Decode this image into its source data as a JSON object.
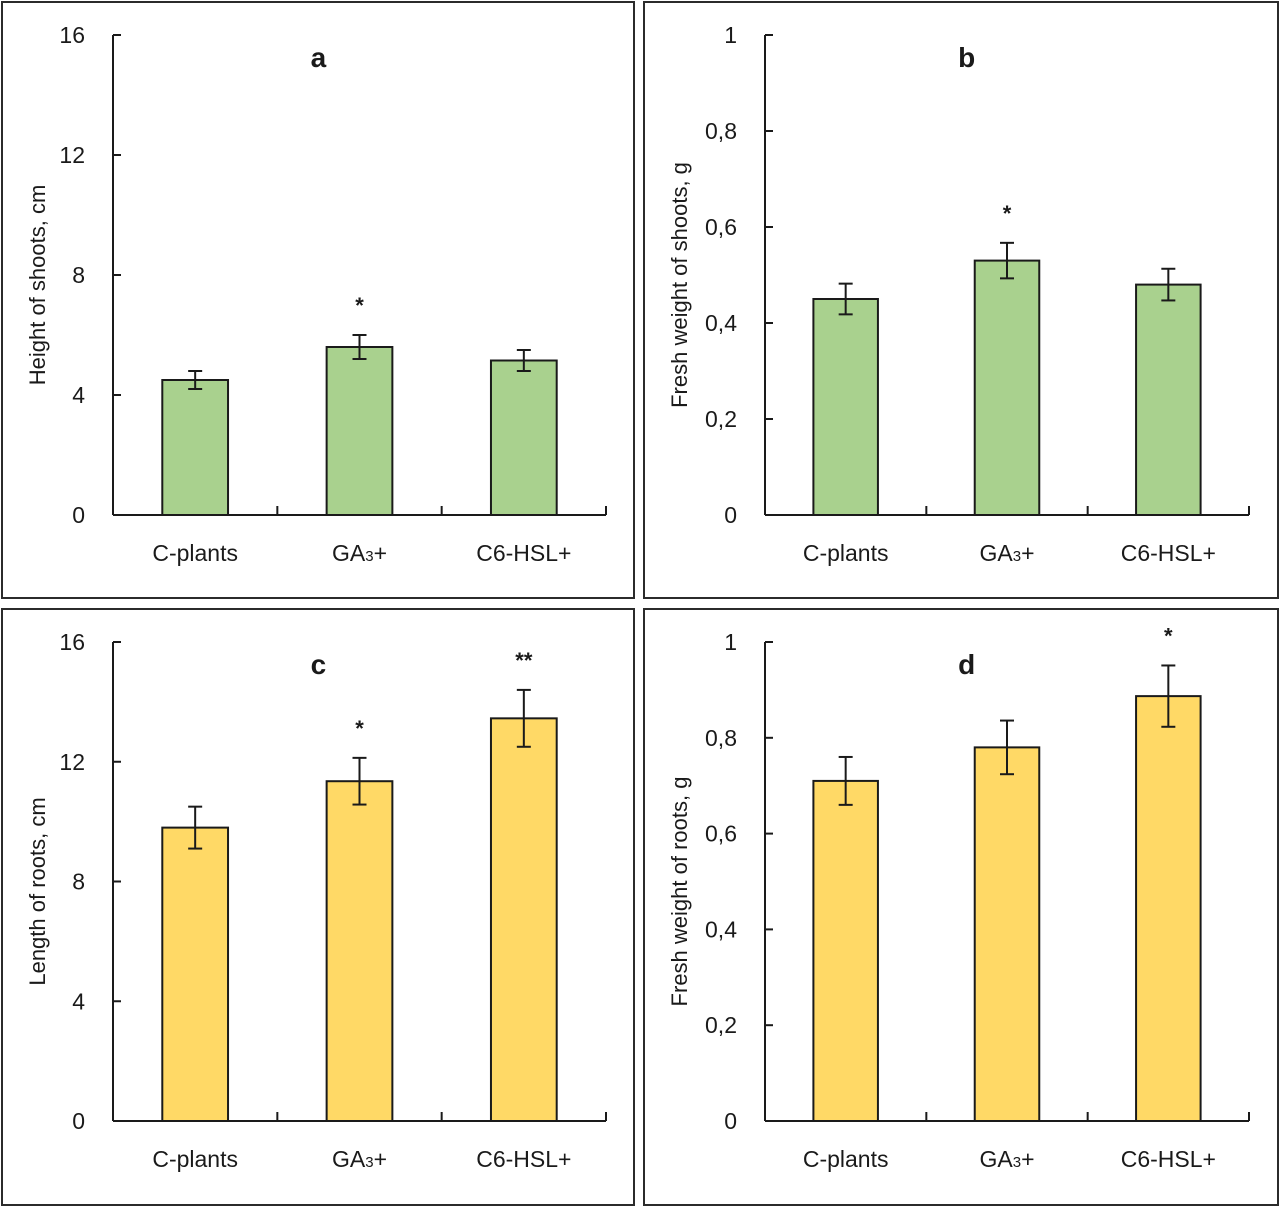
{
  "figure": {
    "colors": {
      "green": "#A9D18E",
      "yellow": "#FFD966",
      "stroke": "#1a1a1a"
    }
  },
  "chart_data": [
    {
      "panel": "a",
      "type": "bar",
      "title": "a",
      "categories": [
        "C-plants",
        "GA3+",
        "C6-HSL+"
      ],
      "category_display": [
        {
          "main": "C-plants",
          "sub": ""
        },
        {
          "main": "GA",
          "sub": "3",
          "tail": "+"
        },
        {
          "main": "C6-HSL+",
          "sub": ""
        }
      ],
      "values": [
        4.5,
        5.6,
        5.15
      ],
      "errors": [
        0.3,
        0.4,
        0.35
      ],
      "significance": [
        "",
        "*",
        ""
      ],
      "xlabel": "",
      "ylabel": "Height of shoots, cm",
      "ylim": [
        0,
        16
      ],
      "yticks": [
        0,
        4,
        8,
        12,
        16
      ],
      "ytick_labels": [
        "0",
        "4",
        "8",
        "12",
        "16"
      ],
      "color": "#A9D18E",
      "grid": false,
      "legend": "none"
    },
    {
      "panel": "b",
      "type": "bar",
      "title": "b",
      "categories": [
        "C-plants",
        "GA3+",
        "C6-HSL+"
      ],
      "category_display": [
        {
          "main": "C-plants",
          "sub": ""
        },
        {
          "main": "GA",
          "sub": "3",
          "tail": "+"
        },
        {
          "main": "C6-HSL+",
          "sub": ""
        }
      ],
      "values": [
        0.45,
        0.53,
        0.48
      ],
      "errors": [
        0.032,
        0.037,
        0.033
      ],
      "significance": [
        "",
        "*",
        ""
      ],
      "xlabel": "",
      "ylabel": "Fresh weight of shoots, g",
      "ylim": [
        0,
        1
      ],
      "yticks": [
        0,
        0.2,
        0.4,
        0.6,
        0.8,
        1
      ],
      "ytick_labels": [
        "0",
        "0,2",
        "0,4",
        "0,6",
        "0,8",
        "1"
      ],
      "color": "#A9D18E",
      "grid": false,
      "legend": "none"
    },
    {
      "panel": "c",
      "type": "bar",
      "title": "c",
      "categories": [
        "C-plants",
        "GA3+",
        "C6-HSL+"
      ],
      "category_display": [
        {
          "main": "C-plants",
          "sub": ""
        },
        {
          "main": "GA",
          "sub": "3",
          "tail": "+"
        },
        {
          "main": "C6-HSL+",
          "sub": ""
        }
      ],
      "values": [
        9.8,
        11.35,
        13.45
      ],
      "errors": [
        0.7,
        0.78,
        0.95
      ],
      "significance": [
        "",
        "*",
        "**"
      ],
      "xlabel": "",
      "ylabel": "Length of roots, cm",
      "ylim": [
        0,
        16
      ],
      "yticks": [
        0,
        4,
        8,
        12,
        16
      ],
      "ytick_labels": [
        "0",
        "4",
        "8",
        "12",
        "16"
      ],
      "color": "#FFD966",
      "grid": false,
      "legend": "none"
    },
    {
      "panel": "d",
      "type": "bar",
      "title": "d",
      "categories": [
        "C-plants",
        "GA3+",
        "C6-HSL+"
      ],
      "category_display": [
        {
          "main": "C-plants",
          "sub": ""
        },
        {
          "main": "GA",
          "sub": "3",
          "tail": "+"
        },
        {
          "main": "C6-HSL+",
          "sub": ""
        }
      ],
      "values": [
        0.71,
        0.78,
        0.887
      ],
      "errors": [
        0.05,
        0.056,
        0.064
      ],
      "significance": [
        "",
        "",
        "*"
      ],
      "xlabel": "",
      "ylabel": "Fresh weight of roots, g",
      "ylim": [
        0,
        1
      ],
      "yticks": [
        0,
        0.2,
        0.4,
        0.6,
        0.8,
        1
      ],
      "ytick_labels": [
        "0",
        "0,2",
        "0,4",
        "0,6",
        "0,8",
        "1"
      ],
      "color": "#FFD966",
      "grid": false,
      "legend": "none"
    }
  ]
}
